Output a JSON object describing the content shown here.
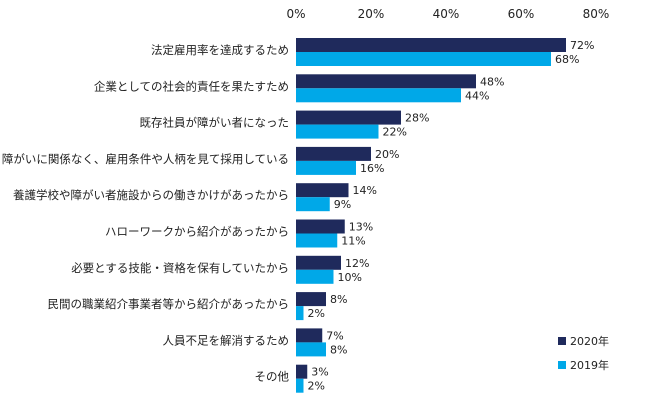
{
  "chart_data": {
    "type": "bar",
    "orientation": "horizontal",
    "title": "",
    "xlabel": "",
    "ylabel": "",
    "xlim": [
      0,
      80
    ],
    "ticks": [
      0,
      20,
      40,
      60,
      80
    ],
    "tick_labels": [
      "0%",
      "20%",
      "40%",
      "60%",
      "80%"
    ],
    "grid": false,
    "legend_position": "bottom-right",
    "categories": [
      "法定雇用率を達成するため",
      "企業としての社会的責任を果たすため",
      "既存社員が障がい者になった",
      "障がいに関係なく、雇用条件や人柄を見て採用している",
      "養護学校や障がい者施設からの働きかけがあったから",
      "ハローワークから紹介があったから",
      "必要とする技能・資格を保有していたから",
      "民間の職業紹介事業者等から紹介があったから",
      "人員不足を解消するため",
      "その他"
    ],
    "series": [
      {
        "name": "2020年",
        "color": "#1f2a5c",
        "values": [
          72,
          48,
          28,
          20,
          14,
          13,
          12,
          8,
          7,
          3
        ],
        "labels": [
          "72%",
          "48%",
          "28%",
          "20%",
          "14%",
          "13%",
          "12%",
          "8%",
          "7%",
          "3%"
        ]
      },
      {
        "name": "2019年",
        "color": "#00a8e8",
        "values": [
          68,
          44,
          22,
          16,
          9,
          11,
          10,
          2,
          8,
          2
        ],
        "labels": [
          "68%",
          "44%",
          "22%",
          "16%",
          "9%",
          "11%",
          "10%",
          "2%",
          "8%",
          "2%"
        ]
      }
    ]
  }
}
